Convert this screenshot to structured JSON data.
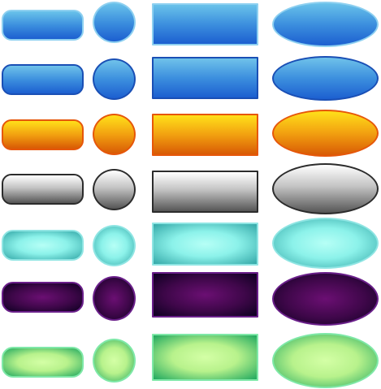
{
  "palette": {
    "row_1": {
      "name": "blue-light-border",
      "top": "#69c2ea",
      "bottom": "#1c5fd0",
      "border": "#8ed0f0"
    },
    "row_2": {
      "name": "blue-dark-border",
      "top": "#6fc2ea",
      "bottom": "#1c5fd0",
      "border": "#1a4fb5"
    },
    "row_3": {
      "name": "orange",
      "top": "#ffe01a",
      "bottom": "#d85a05",
      "border": "#e6570a"
    },
    "row_4": {
      "name": "gray",
      "top": "#ffffff",
      "bottom": "#555555",
      "border": "#2c2c2c"
    },
    "row_5": {
      "name": "teal",
      "center": "#b6fff6",
      "edge": "#34a8a8",
      "border": "#8fe5e3"
    },
    "row_6": {
      "name": "purple",
      "center": "#6b0f73",
      "edge": "#0d0020",
      "border": "#6a1f8a"
    },
    "row_7": {
      "name": "green",
      "center": "#d4ffa6",
      "edge": "#1fa85f",
      "border": "#7fe8a8"
    }
  },
  "shapes": [
    "pill",
    "circle",
    "rectangle",
    "oval"
  ]
}
